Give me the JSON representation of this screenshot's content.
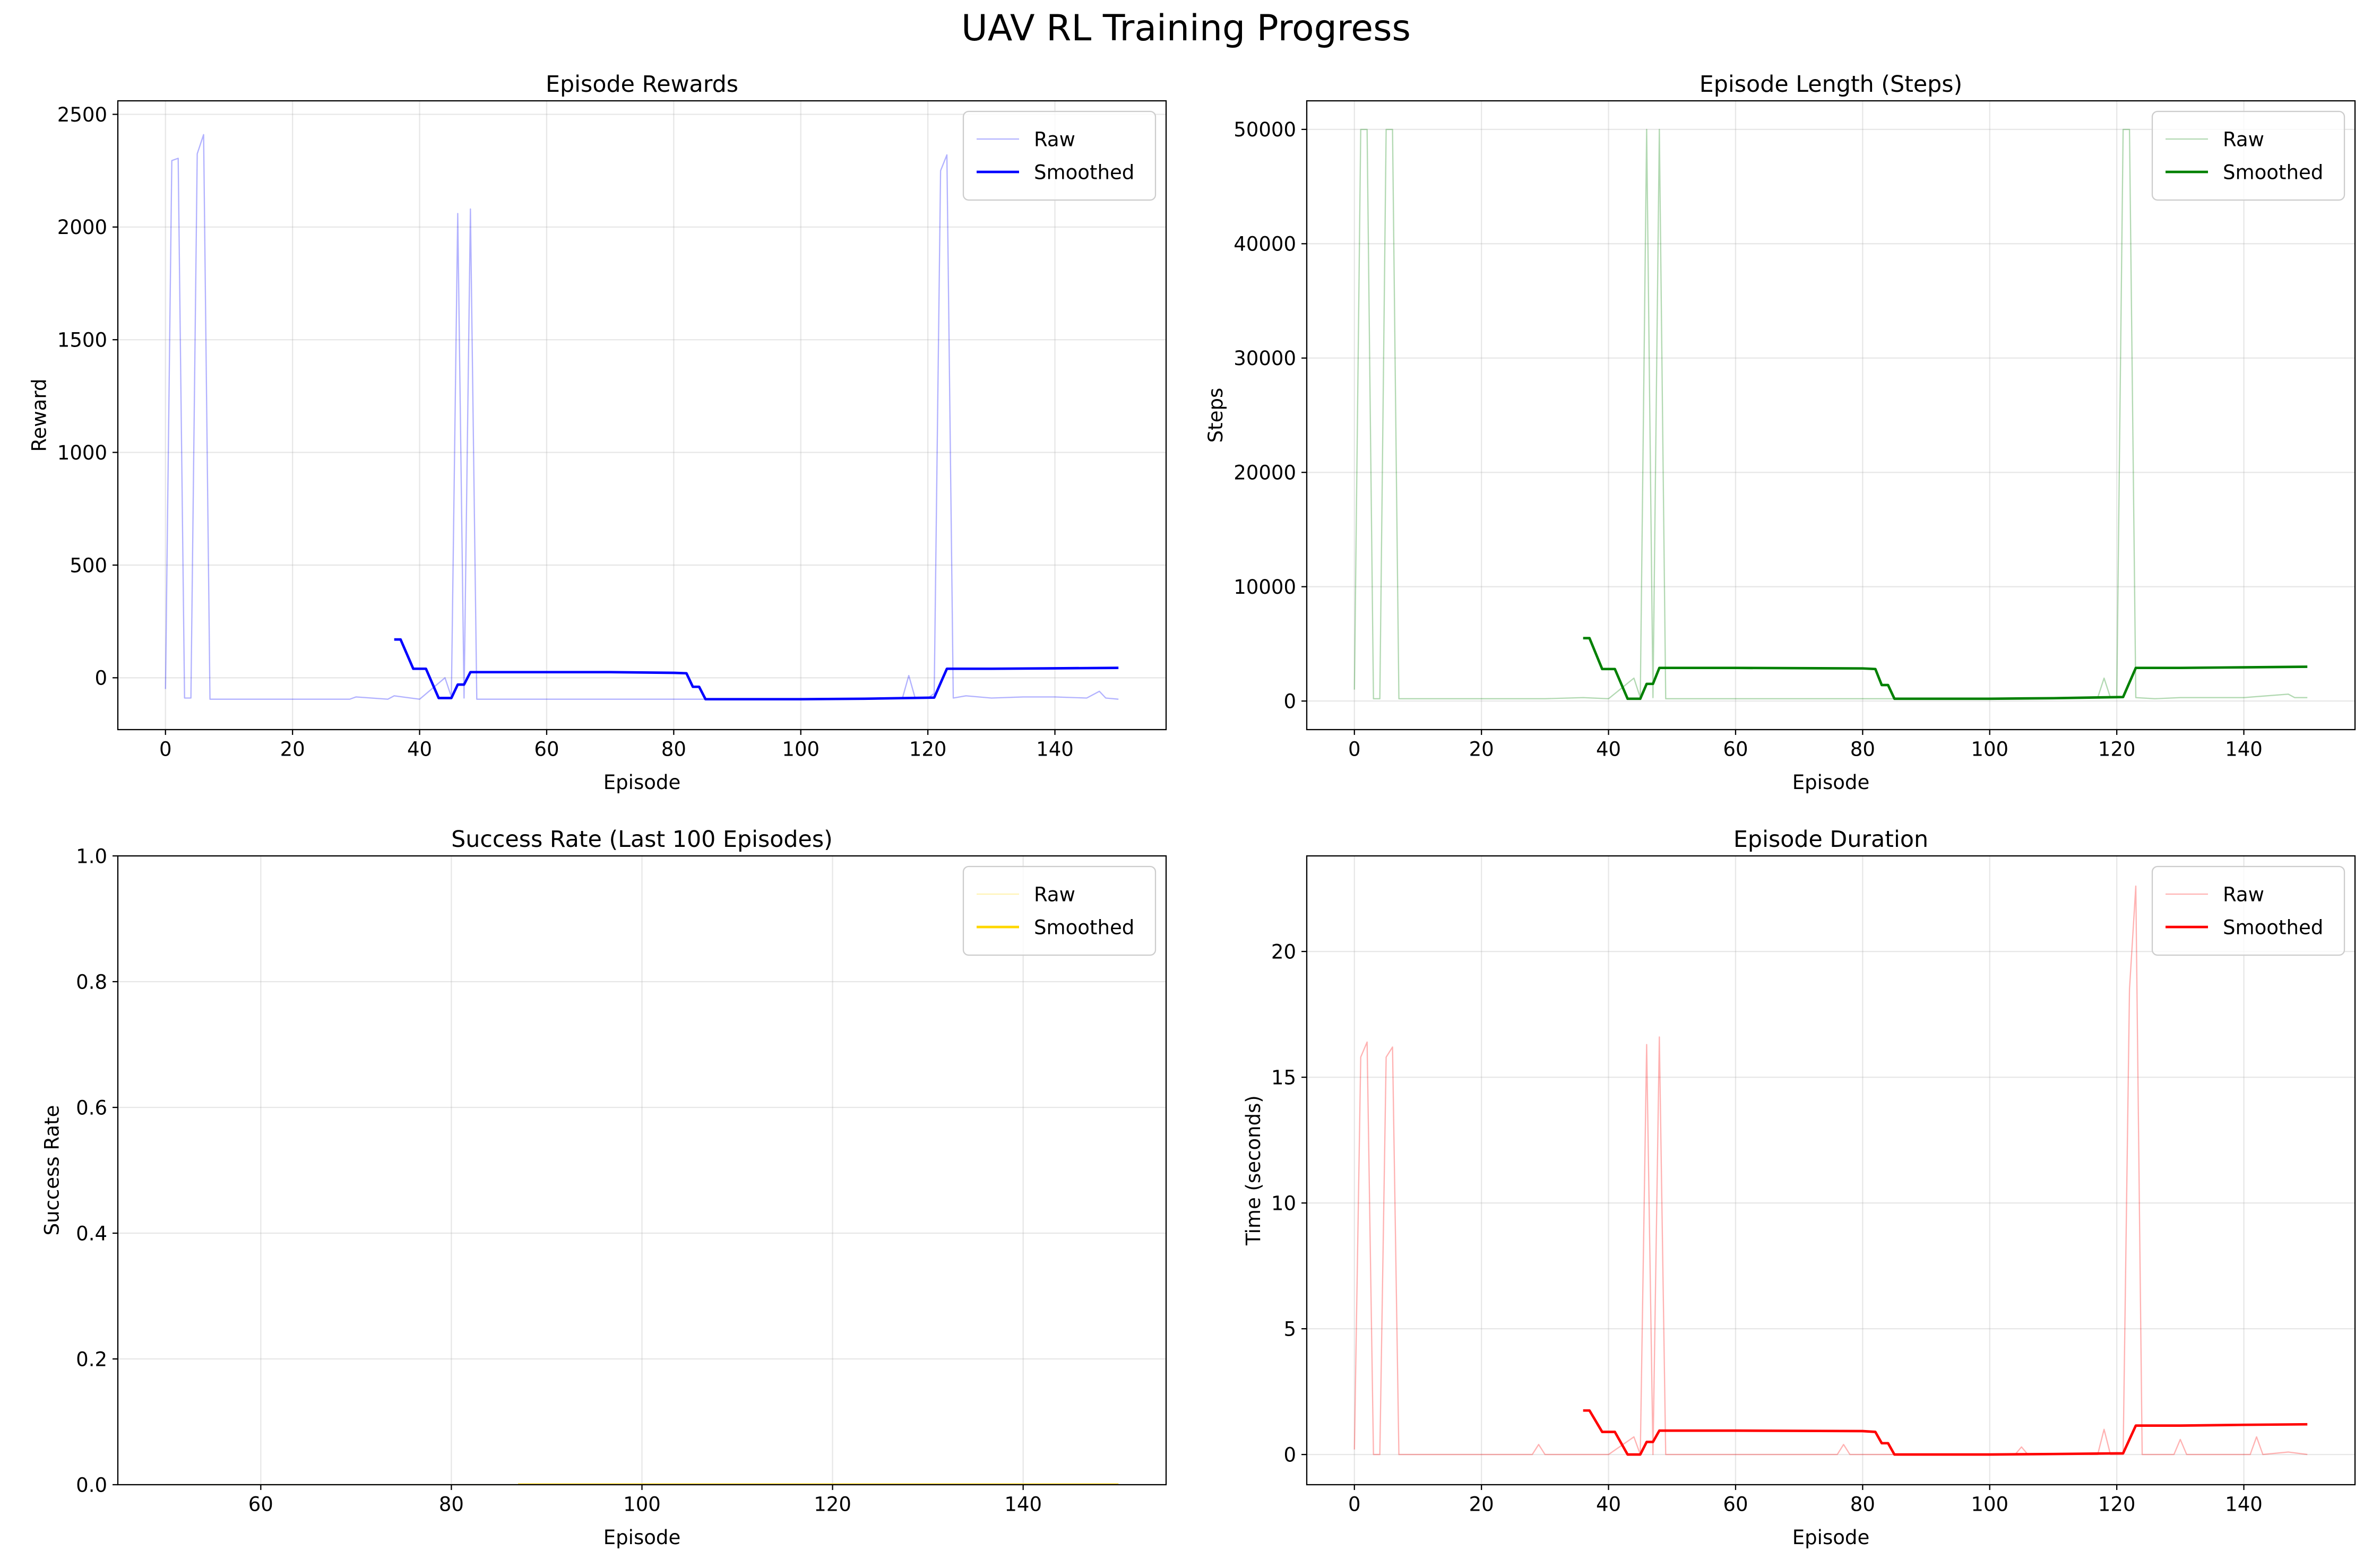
{
  "figure": {
    "title": "UAV RL Training Progress"
  },
  "chart_data": [
    {
      "type": "line",
      "title": "Episode Rewards",
      "xlabel": "Episode",
      "ylabel": "Reward",
      "xlim": [
        -7.5,
        157.5
      ],
      "ylim": [
        -230,
        2560
      ],
      "xticks": [
        0,
        20,
        40,
        60,
        80,
        100,
        120,
        140
      ],
      "yticks": [
        0,
        500,
        1000,
        1500,
        2000,
        2500
      ],
      "grid": true,
      "legend": "top-right",
      "series": [
        {
          "name": "Raw",
          "color": "#0000ff",
          "opacity": 0.3,
          "width": 1.5,
          "points": [
            [
              0,
              -50
            ],
            [
              1,
              2295
            ],
            [
              2,
              2305
            ],
            [
              3,
              -90
            ],
            [
              4,
              -90
            ],
            [
              5,
              2325
            ],
            [
              6,
              2410
            ],
            [
              7,
              -95
            ],
            [
              10,
              -95
            ],
            [
              20,
              -95
            ],
            [
              29,
              -95
            ],
            [
              30,
              -85
            ],
            [
              35,
              -95
            ],
            [
              36,
              -80
            ],
            [
              40,
              -95
            ],
            [
              44,
              0
            ],
            [
              45,
              -85
            ],
            [
              46,
              2060
            ],
            [
              47,
              -90
            ],
            [
              48,
              2080
            ],
            [
              49,
              -95
            ],
            [
              60,
              -95
            ],
            [
              80,
              -95
            ],
            [
              100,
              -95
            ],
            [
              110,
              -95
            ],
            [
              116,
              -90
            ],
            [
              117,
              10
            ],
            [
              118,
              -90
            ],
            [
              120,
              -90
            ],
            [
              121,
              -70
            ],
            [
              122,
              2250
            ],
            [
              123,
              2320
            ],
            [
              124,
              -90
            ],
            [
              126,
              -80
            ],
            [
              130,
              -90
            ],
            [
              135,
              -85
            ],
            [
              140,
              -85
            ],
            [
              145,
              -90
            ],
            [
              147,
              -60
            ],
            [
              148,
              -90
            ],
            [
              150,
              -95
            ]
          ]
        },
        {
          "name": "Smoothed",
          "color": "#0000ff",
          "opacity": 1,
          "width": 3,
          "points": [
            [
              36,
              170
            ],
            [
              37,
              170
            ],
            [
              39,
              40
            ],
            [
              41,
              40
            ],
            [
              43,
              -90
            ],
            [
              45,
              -90
            ],
            [
              46,
              -30
            ],
            [
              47,
              -30
            ],
            [
              48,
              25
            ],
            [
              60,
              25
            ],
            [
              70,
              25
            ],
            [
              80,
              22
            ],
            [
              82,
              20
            ],
            [
              83,
              -40
            ],
            [
              84,
              -40
            ],
            [
              85,
              -95
            ],
            [
              100,
              -95
            ],
            [
              110,
              -93
            ],
            [
              121,
              -88
            ],
            [
              123,
              40
            ],
            [
              130,
              40
            ],
            [
              140,
              42
            ],
            [
              150,
              44
            ]
          ]
        }
      ]
    },
    {
      "type": "line",
      "title": "Episode Length (Steps)",
      "xlabel": "Episode",
      "ylabel": "Steps",
      "xlim": [
        -7.5,
        157.5
      ],
      "ylim": [
        -2500,
        52500
      ],
      "xticks": [
        0,
        20,
        40,
        60,
        80,
        100,
        120,
        140
      ],
      "yticks": [
        0,
        10000,
        20000,
        30000,
        40000,
        50000
      ],
      "grid": true,
      "legend": "top-right",
      "series": [
        {
          "name": "Raw",
          "color": "#008000",
          "opacity": 0.3,
          "width": 1.5,
          "points": [
            [
              0,
              1000
            ],
            [
              1,
              50000
            ],
            [
              2,
              50000
            ],
            [
              3,
              200
            ],
            [
              4,
              200
            ],
            [
              5,
              50000
            ],
            [
              6,
              50000
            ],
            [
              7,
              200
            ],
            [
              10,
              200
            ],
            [
              20,
              200
            ],
            [
              30,
              200
            ],
            [
              36,
              300
            ],
            [
              40,
              200
            ],
            [
              44,
              2000
            ],
            [
              45,
              300
            ],
            [
              46,
              50000
            ],
            [
              47,
              300
            ],
            [
              48,
              50000
            ],
            [
              49,
              200
            ],
            [
              60,
              200
            ],
            [
              80,
              200
            ],
            [
              100,
              200
            ],
            [
              117,
              300
            ],
            [
              118,
              2000
            ],
            [
              119,
              300
            ],
            [
              120,
              300
            ],
            [
              121,
              50000
            ],
            [
              122,
              50000
            ],
            [
              123,
              300
            ],
            [
              126,
              200
            ],
            [
              130,
              300
            ],
            [
              140,
              300
            ],
            [
              147,
              600
            ],
            [
              148,
              300
            ],
            [
              150,
              300
            ]
          ]
        },
        {
          "name": "Smoothed",
          "color": "#008000",
          "opacity": 1,
          "width": 3,
          "points": [
            [
              36,
              5500
            ],
            [
              37,
              5500
            ],
            [
              39,
              2800
            ],
            [
              41,
              2800
            ],
            [
              43,
              200
            ],
            [
              45,
              200
            ],
            [
              46,
              1500
            ],
            [
              47,
              1500
            ],
            [
              48,
              2900
            ],
            [
              60,
              2900
            ],
            [
              80,
              2850
            ],
            [
              82,
              2800
            ],
            [
              83,
              1400
            ],
            [
              84,
              1400
            ],
            [
              85,
              200
            ],
            [
              100,
              200
            ],
            [
              110,
              250
            ],
            [
              121,
              350
            ],
            [
              123,
              2900
            ],
            [
              130,
              2900
            ],
            [
              140,
              2950
            ],
            [
              150,
              3000
            ]
          ]
        }
      ]
    },
    {
      "type": "line",
      "title": "Success Rate (Last 100 Episodes)",
      "xlabel": "Episode",
      "ylabel": "Success Rate",
      "xlim": [
        45,
        155
      ],
      "ylim": [
        0,
        1
      ],
      "xticks": [
        60,
        80,
        100,
        120,
        140
      ],
      "yticks": [
        0.0,
        0.2,
        0.4,
        0.6,
        0.8,
        1.0
      ],
      "grid": true,
      "legend": "top-right",
      "series": [
        {
          "name": "Raw",
          "color": "#ffd700",
          "opacity": 0.3,
          "width": 1.5,
          "points": [
            [
              50,
              0
            ],
            [
              150,
              0
            ]
          ]
        },
        {
          "name": "Smoothed",
          "color": "#ffd700",
          "opacity": 1,
          "width": 3,
          "points": [
            [
              87,
              0
            ],
            [
              150,
              0
            ]
          ]
        }
      ]
    },
    {
      "type": "line",
      "title": "Episode Duration",
      "xlabel": "Episode",
      "ylabel": "Time (seconds)",
      "xlim": [
        -7.5,
        157.5
      ],
      "ylim": [
        -1.2,
        23.8
      ],
      "xticks": [
        0,
        20,
        40,
        60,
        80,
        100,
        120,
        140
      ],
      "yticks": [
        0,
        5,
        10,
        15,
        20
      ],
      "grid": true,
      "legend": "top-right",
      "series": [
        {
          "name": "Raw",
          "color": "#ff0000",
          "opacity": 0.3,
          "width": 1.5,
          "points": [
            [
              0,
              0.2
            ],
            [
              1,
              15.8
            ],
            [
              2,
              16.4
            ],
            [
              3,
              0
            ],
            [
              4,
              0
            ],
            [
              5,
              15.8
            ],
            [
              6,
              16.2
            ],
            [
              7,
              0
            ],
            [
              20,
              0
            ],
            [
              28,
              0
            ],
            [
              29,
              0.4
            ],
            [
              30,
              0
            ],
            [
              40,
              0
            ],
            [
              44,
              0.7
            ],
            [
              45,
              0
            ],
            [
              46,
              16.3
            ],
            [
              47,
              0
            ],
            [
              48,
              16.6
            ],
            [
              49,
              0
            ],
            [
              60,
              0
            ],
            [
              76,
              0
            ],
            [
              77,
              0.4
            ],
            [
              78,
              0
            ],
            [
              100,
              0
            ],
            [
              104,
              0
            ],
            [
              105,
              0.3
            ],
            [
              106,
              0
            ],
            [
              117,
              0
            ],
            [
              118,
              1.0
            ],
            [
              119,
              0
            ],
            [
              121,
              0
            ],
            [
              122,
              18.5
            ],
            [
              123,
              22.6
            ],
            [
              124,
              0
            ],
            [
              129,
              0
            ],
            [
              130,
              0.6
            ],
            [
              131,
              0
            ],
            [
              141,
              0
            ],
            [
              142,
              0.7
            ],
            [
              143,
              0
            ],
            [
              147,
              0.1
            ],
            [
              150,
              0
            ]
          ]
        },
        {
          "name": "Smoothed",
          "color": "#ff0000",
          "opacity": 1,
          "width": 3,
          "points": [
            [
              36,
              1.75
            ],
            [
              37,
              1.75
            ],
            [
              39,
              0.9
            ],
            [
              41,
              0.9
            ],
            [
              43,
              0
            ],
            [
              45,
              0
            ],
            [
              46,
              0.5
            ],
            [
              47,
              0.5
            ],
            [
              48,
              0.95
            ],
            [
              60,
              0.95
            ],
            [
              80,
              0.93
            ],
            [
              82,
              0.9
            ],
            [
              83,
              0.45
            ],
            [
              84,
              0.45
            ],
            [
              85,
              0
            ],
            [
              100,
              0
            ],
            [
              110,
              0.02
            ],
            [
              121,
              0.05
            ],
            [
              123,
              1.15
            ],
            [
              130,
              1.15
            ],
            [
              140,
              1.18
            ],
            [
              150,
              1.2
            ]
          ]
        }
      ]
    }
  ]
}
